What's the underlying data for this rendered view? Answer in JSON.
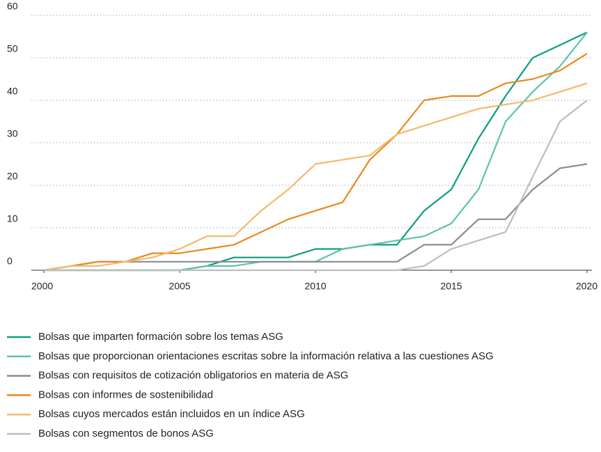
{
  "chart_data": {
    "type": "line",
    "x": [
      2000,
      2001,
      2002,
      2003,
      2004,
      2005,
      2006,
      2007,
      2008,
      2009,
      2010,
      2011,
      2012,
      2013,
      2014,
      2015,
      2016,
      2017,
      2018,
      2019,
      2020
    ],
    "xlim": [
      2000,
      2020
    ],
    "xticks": [
      2000,
      2005,
      2010,
      2015,
      2020
    ],
    "ylim": [
      0,
      60
    ],
    "yticks": [
      0,
      10,
      20,
      30,
      40,
      50,
      60
    ],
    "grid": true,
    "legend": "bottom",
    "series": [
      {
        "name": "Bolsas que imparten formación sobre los temas ASG",
        "color": "#0a9e7f",
        "values": [
          0,
          0,
          0,
          0,
          0,
          0,
          1,
          3,
          3,
          3,
          5,
          5,
          6,
          6,
          14,
          19,
          31,
          41,
          50,
          53,
          56
        ]
      },
      {
        "name": "Bolsas que proporcionan orientaciones escritas sobre la información relativa a las cuestiones ASG",
        "color": "#5cc3a8",
        "values": [
          0,
          0,
          0,
          0,
          0,
          0,
          1,
          1,
          2,
          2,
          2,
          5,
          6,
          7,
          8,
          11,
          19,
          35,
          42,
          48,
          56
        ]
      },
      {
        "name": "Bolsas con requisitos de cotización obligatorios en materia de ASG",
        "color": "#8c8c8c",
        "values": [
          0,
          1,
          2,
          2,
          2,
          2,
          2,
          2,
          2,
          2,
          2,
          2,
          2,
          2,
          6,
          6,
          12,
          12,
          19,
          24,
          25
        ]
      },
      {
        "name": "Bolsas con informes de sostenibilidad",
        "color": "#e8891e",
        "values": [
          0,
          1,
          2,
          2,
          4,
          4,
          5,
          6,
          9,
          12,
          14,
          16,
          26,
          32,
          40,
          41,
          41,
          44,
          45,
          47,
          51
        ]
      },
      {
        "name": "Bolsas cuyos mercados están incluidos en un índice ASG",
        "color": "#f6b76d",
        "values": [
          0,
          1,
          1,
          2,
          3,
          5,
          8,
          8,
          14,
          19,
          25,
          26,
          27,
          32,
          34,
          36,
          38,
          39,
          40,
          42,
          44
        ]
      },
      {
        "name": "Bolsas con segmentos de bonos ASG",
        "color": "#bdbdbd",
        "values": [
          0,
          0,
          0,
          0,
          0,
          0,
          0,
          0,
          0,
          0,
          0,
          0,
          0,
          0,
          1,
          5,
          7,
          9,
          22,
          35,
          40
        ]
      }
    ]
  }
}
